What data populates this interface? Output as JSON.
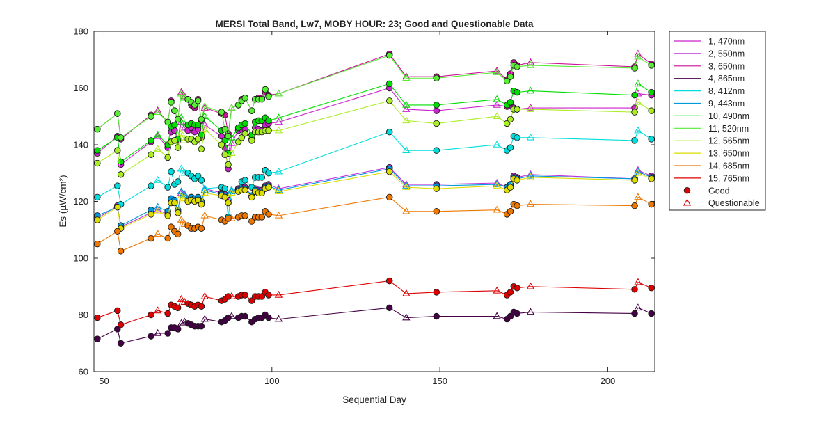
{
  "chart_data": {
    "type": "line",
    "title": "MERSI Total Band,  Lw7, MOBY HOUR: 23;  Good and Questionable Data",
    "xlabel": "Sequential Day",
    "ylabel": "Es (µW/cm²)",
    "xlim": [
      47,
      214
    ],
    "ylim": [
      60,
      180
    ],
    "xticks": [
      50,
      100,
      150,
      200
    ],
    "yticks": [
      60,
      80,
      100,
      120,
      140,
      160,
      180
    ],
    "xtick_labels": [
      "50",
      "100",
      "150",
      "200"
    ],
    "ytick_labels": [
      "60",
      "80",
      "100",
      "120",
      "140",
      "160",
      "180"
    ],
    "grid": false,
    "legend_position": "outside-right",
    "marker_legend": [
      {
        "label": "Good",
        "marker": "circle",
        "color": "#e00000"
      },
      {
        "label": "Questionable",
        "marker": "triangle",
        "color": "#e00000"
      }
    ],
    "x": [
      48,
      54,
      55,
      64,
      66,
      69,
      70,
      71,
      72,
      73,
      74,
      75,
      76,
      77,
      78,
      79,
      80,
      85,
      86,
      87,
      88,
      90,
      91,
      92,
      94,
      95,
      96,
      97,
      98,
      99,
      102,
      135,
      140,
      149,
      167,
      170,
      171,
      172,
      173,
      177,
      208,
      209,
      213
    ],
    "quality": [
      "G",
      "G",
      "G",
      "G",
      "Q",
      "G",
      "G",
      "G",
      "G",
      "Q",
      "Q",
      "G",
      "G",
      "G",
      "G",
      "G",
      "Q",
      "G",
      "G",
      "G",
      "Q",
      "G",
      "G",
      "G",
      "G",
      "G",
      "G",
      "G",
      "G",
      "G",
      "Q",
      "G",
      "Q",
      "G",
      "Q",
      "G",
      "G",
      "G",
      "G",
      "Q",
      "G",
      "Q",
      "G"
    ],
    "series": [
      {
        "name": "1, 470nm",
        "color": "#cc22cc",
        "values": [
          137.0,
          143.0,
          133.0,
          141.0,
          143.0,
          139.0,
          144.5,
          145.0,
          141.5,
          148.0,
          146.0,
          145.0,
          146.0,
          144.5,
          145.5,
          142.5,
          147.0,
          143.0,
          139.0,
          131.5,
          140.5,
          145.0,
          145.5,
          145.5,
          142.0,
          146.0,
          145.5,
          145.0,
          147.0,
          147.5,
          148.0,
          160.0,
          152.5,
          152.0,
          154.0,
          153.5,
          154.0,
          153.0,
          152.5,
          153.0,
          153.0,
          158.0,
          157.5
        ]
      },
      {
        "name": "2, 550nm",
        "color": "#bb33dd",
        "values": [
          114.0,
          118.5,
          111.0,
          116.0,
          117.0,
          115.5,
          120.5,
          120.0,
          116.5,
          123.0,
          122.0,
          120.5,
          121.5,
          120.5,
          121.0,
          119.5,
          124.5,
          123.0,
          122.5,
          120.5,
          124.0,
          124.5,
          125.0,
          125.0,
          122.0,
          124.5,
          124.0,
          124.0,
          125.5,
          126.0,
          124.5,
          132.0,
          126.0,
          126.0,
          126.5,
          125.0,
          126.0,
          129.0,
          128.5,
          129.5,
          128.0,
          131.0,
          129.0
        ]
      },
      {
        "name": "3, 650nm",
        "color": "#cc1199",
        "values": [
          145.5,
          151.0,
          142.0,
          150.5,
          152.0,
          148.0,
          155.5,
          152.0,
          149.0,
          158.5,
          157.0,
          156.0,
          154.0,
          153.0,
          156.0,
          148.5,
          153.0,
          151.0,
          150.5,
          144.0,
          153.0,
          154.0,
          156.0,
          156.5,
          152.0,
          156.0,
          156.5,
          156.5,
          158.5,
          157.5,
          158.0,
          172.0,
          164.0,
          164.0,
          166.0,
          163.0,
          165.0,
          169.0,
          168.0,
          169.0,
          167.5,
          172.0,
          168.5
        ]
      },
      {
        "name": "4, 865nm",
        "color": "#440044",
        "values": [
          71.5,
          75.0,
          70.0,
          72.5,
          73.5,
          73.5,
          75.5,
          75.5,
          75.0,
          77.0,
          77.5,
          77.0,
          76.5,
          76.0,
          76.0,
          76.0,
          78.5,
          77.5,
          78.0,
          79.0,
          79.5,
          79.0,
          79.5,
          79.5,
          77.5,
          78.5,
          79.0,
          79.0,
          80.0,
          79.0,
          78.5,
          82.5,
          79.0,
          79.5,
          79.5,
          78.5,
          79.5,
          81.0,
          80.5,
          81.0,
          80.5,
          82.5,
          80.5
        ]
      },
      {
        "name": "8, 412nm",
        "color": "#00dddd",
        "values": [
          121.5,
          125.5,
          119.0,
          125.5,
          127.5,
          125.0,
          130.5,
          126.0,
          127.0,
          131.5,
          130.0,
          130.0,
          129.0,
          128.0,
          129.0,
          127.5,
          124.5,
          125.0,
          124.5,
          114.5,
          124.0,
          124.0,
          127.0,
          127.5,
          125.0,
          128.5,
          128.5,
          128.5,
          131.0,
          130.0,
          130.5,
          144.5,
          138.0,
          138.0,
          140.0,
          138.0,
          139.0,
          143.0,
          142.5,
          142.5,
          141.5,
          145.0,
          142.0
        ]
      },
      {
        "name": "9, 443nm",
        "color": "#0099dd",
        "values": [
          115.0,
          118.0,
          111.5,
          117.0,
          118.0,
          116.5,
          121.0,
          120.5,
          117.0,
          123.5,
          122.5,
          121.0,
          121.5,
          121.0,
          121.5,
          120.0,
          124.0,
          122.5,
          122.0,
          119.5,
          123.5,
          124.0,
          124.5,
          124.5,
          122.0,
          124.0,
          123.5,
          123.5,
          125.0,
          125.5,
          124.0,
          131.5,
          125.5,
          125.5,
          126.0,
          125.0,
          126.0,
          128.5,
          128.0,
          129.0,
          128.0,
          130.5,
          128.5
        ]
      },
      {
        "name": "10, 490nm",
        "color": "#00dd00",
        "values": [
          138.0,
          142.5,
          134.0,
          141.5,
          143.5,
          140.0,
          146.5,
          147.0,
          142.0,
          149.5,
          147.0,
          147.0,
          147.5,
          147.0,
          147.0,
          143.5,
          150.0,
          145.0,
          141.5,
          137.0,
          142.5,
          146.0,
          147.0,
          147.5,
          143.5,
          148.0,
          148.5,
          148.5,
          149.5,
          148.5,
          149.5,
          161.5,
          154.0,
          154.0,
          156.0,
          154.0,
          155.0,
          159.0,
          158.5,
          159.0,
          157.5,
          161.5,
          158.5
        ]
      },
      {
        "name": "11, 520nm",
        "color": "#55ee33",
        "values": [
          145.5,
          151.0,
          142.5,
          150.0,
          151.5,
          148.0,
          155.0,
          152.0,
          149.0,
          158.0,
          156.5,
          156.0,
          155.0,
          154.0,
          155.5,
          149.0,
          153.5,
          151.5,
          145.5,
          143.0,
          153.0,
          154.0,
          155.5,
          156.5,
          152.0,
          156.0,
          156.0,
          156.0,
          159.5,
          157.0,
          158.0,
          171.5,
          163.5,
          163.5,
          165.5,
          162.5,
          164.0,
          168.0,
          167.5,
          168.0,
          167.0,
          171.0,
          168.0
        ]
      },
      {
        "name": "12, 565nm",
        "color": "#aaee22",
        "values": [
          133.5,
          138.0,
          129.5,
          136.5,
          138.5,
          135.5,
          141.0,
          141.5,
          139.0,
          144.0,
          141.5,
          142.0,
          142.0,
          141.0,
          142.0,
          138.5,
          145.5,
          140.0,
          136.5,
          133.0,
          137.0,
          141.0,
          142.5,
          144.0,
          141.5,
          144.5,
          144.5,
          144.5,
          145.0,
          145.0,
          145.0,
          155.5,
          148.5,
          147.5,
          150.0,
          147.5,
          149.0,
          152.5,
          152.5,
          152.5,
          151.5,
          155.0,
          152.0
        ]
      },
      {
        "name": "13, 650nm",
        "color": "#dddd00",
        "values": [
          113.5,
          118.0,
          110.5,
          115.5,
          116.5,
          115.0,
          119.5,
          119.5,
          116.0,
          122.0,
          121.0,
          120.0,
          120.5,
          120.0,
          120.5,
          119.0,
          123.0,
          122.0,
          121.5,
          119.5,
          123.0,
          123.5,
          124.0,
          124.0,
          121.5,
          123.5,
          123.0,
          123.0,
          124.5,
          125.0,
          123.5,
          130.5,
          125.0,
          124.5,
          125.5,
          124.0,
          125.0,
          128.0,
          127.5,
          128.5,
          127.5,
          130.0,
          128.0
        ]
      },
      {
        "name": "14, 685nm",
        "color": "#ee7700",
        "values": [
          105.0,
          109.5,
          102.5,
          107.0,
          108.5,
          107.0,
          111.0,
          109.5,
          108.5,
          113.5,
          112.0,
          111.5,
          110.5,
          110.5,
          111.0,
          110.5,
          115.0,
          113.5,
          113.0,
          114.0,
          114.0,
          114.5,
          115.0,
          115.0,
          113.0,
          114.5,
          114.5,
          114.5,
          116.5,
          115.5,
          115.0,
          121.5,
          116.5,
          116.5,
          117.0,
          115.5,
          116.5,
          119.0,
          118.5,
          119.0,
          118.5,
          121.5,
          119.0
        ]
      },
      {
        "name": "15, 765nm",
        "color": "#dd0000",
        "values": [
          79.0,
          81.5,
          76.5,
          80.0,
          81.5,
          80.5,
          83.5,
          83.0,
          82.5,
          85.5,
          84.5,
          84.0,
          83.5,
          83.0,
          83.5,
          83.0,
          86.5,
          85.0,
          85.5,
          86.5,
          86.5,
          86.5,
          87.0,
          87.0,
          85.0,
          86.5,
          86.5,
          86.5,
          88.0,
          87.0,
          87.0,
          92.0,
          87.5,
          88.0,
          88.5,
          87.0,
          88.0,
          90.0,
          89.5,
          90.0,
          89.0,
          91.5,
          89.5
        ]
      }
    ]
  }
}
